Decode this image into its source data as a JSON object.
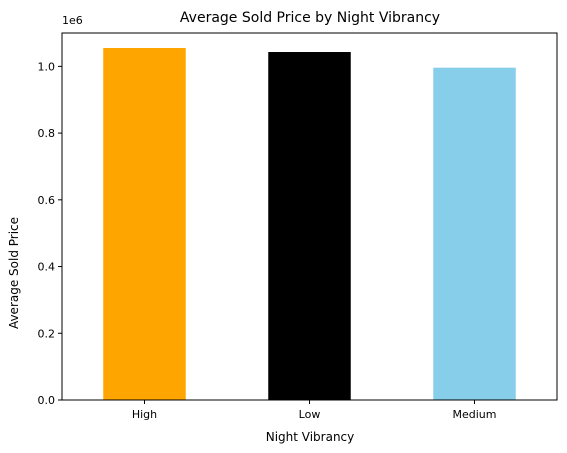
{
  "chart_data": {
    "type": "bar",
    "title": "Average Sold Price by Night Vibrancy",
    "xlabel": "Night Vibrancy",
    "ylabel": "Average Sold Price",
    "categories": [
      "High",
      "Low",
      "Medium"
    ],
    "values": [
      1055000,
      1043000,
      996000
    ],
    "colors": [
      "#FFA500",
      "#000000",
      "#87CEEB"
    ],
    "ylim": [
      0,
      1100000
    ],
    "yticks": [
      0,
      200000,
      400000,
      600000,
      800000,
      1000000
    ],
    "ytick_labels": [
      "0.0",
      "0.2",
      "0.4",
      "0.6",
      "0.8",
      "1.0"
    ],
    "offset_text": "1e6",
    "grid": false,
    "legend": "none"
  }
}
